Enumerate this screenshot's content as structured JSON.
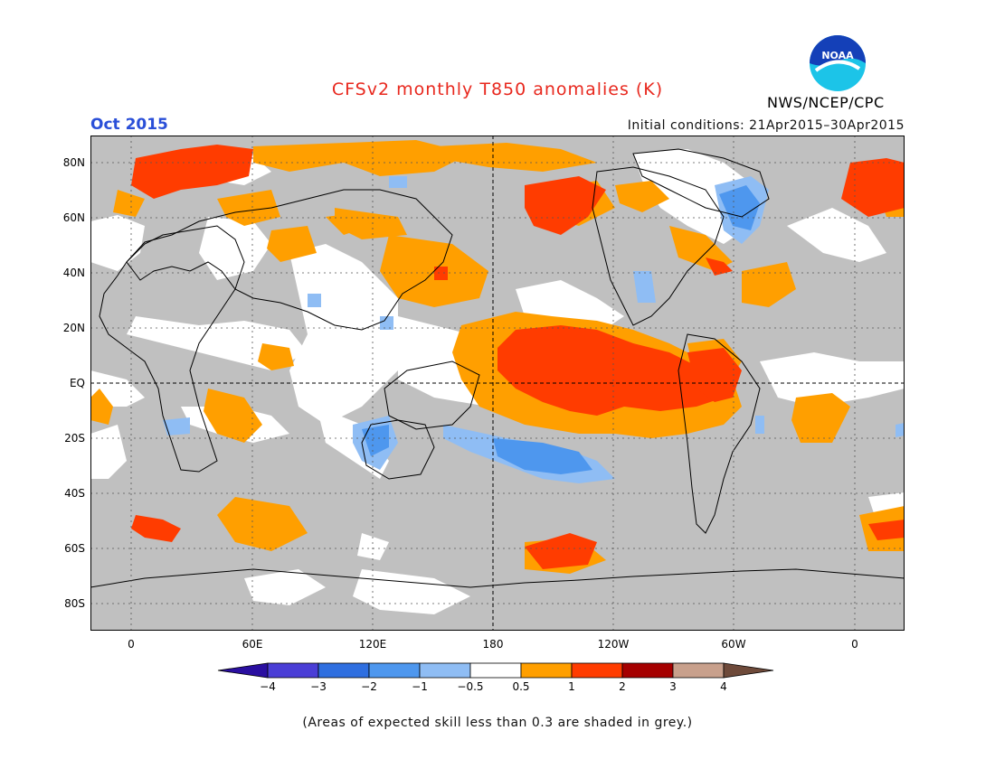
{
  "title": "CFSv2 monthly T850 anomalies (K)",
  "month": "Oct 2015",
  "initial_conditions": "Initial conditions: 21Apr2015–30Apr2015",
  "org": "NWS/NCEP/CPC",
  "logo_text": "NOAA",
  "note": "(Areas of expected skill less than 0.3 are shaded in grey.)",
  "lat_labels": [
    "80N",
    "60N",
    "40N",
    "20N",
    "EQ",
    "20S",
    "40S",
    "60S",
    "80S"
  ],
  "lon_labels": [
    "0",
    "60E",
    "120E",
    "180",
    "120W",
    "60W",
    "0"
  ],
  "colorbar": {
    "labels": [
      "−4",
      "−3",
      "−2",
      "−1",
      "−0.5",
      "0.5",
      "1",
      "2",
      "3",
      "4"
    ],
    "colors": [
      "#2a0fa0",
      "#4a3ed6",
      "#2f6fe0",
      "#4e97ee",
      "#8fbdf4",
      "#ffffff",
      "#ff9f00",
      "#ff3c00",
      "#a50000",
      "#c8a08c",
      "#6e4a3a"
    ]
  },
  "colors": {
    "skill_grey": "#c0c0c0",
    "neutral": "#ffffff",
    "title": "#e8281e",
    "month": "#2a4fd8"
  }
}
